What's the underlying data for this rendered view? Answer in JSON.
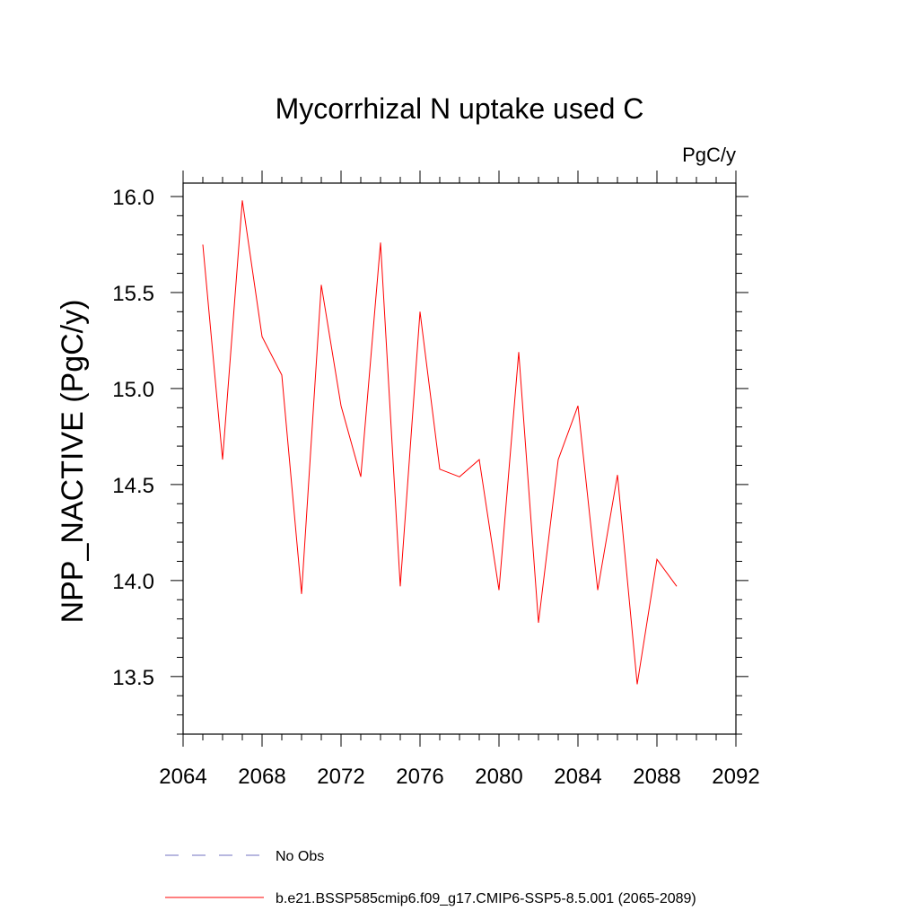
{
  "chart_data": {
    "type": "line",
    "title": "Mycorrhizal N uptake used C",
    "units": "PgC/y",
    "xlabel": "",
    "ylabel": "NPP_NACTIVE  (PgC/y)",
    "xlim": [
      2064,
      2092
    ],
    "ylim": [
      13.2,
      16.07
    ],
    "xticks": [
      "2064",
      "2068",
      "2072",
      "2076",
      "2080",
      "2084",
      "2088",
      "2092"
    ],
    "yticks": [
      "13.5",
      "14.0",
      "14.5",
      "15.0",
      "15.5",
      "16.0"
    ],
    "grid": false,
    "legend_position": "bottom",
    "series": [
      {
        "name": "b.e21.BSSP585cmip6.f09_g17.CMIP6-SSP5-8.5.001 (2065-2089)",
        "color": "#ff0000",
        "x": [
          2065,
          2066,
          2067,
          2068,
          2069,
          2070,
          2071,
          2072,
          2073,
          2074,
          2075,
          2076,
          2077,
          2078,
          2079,
          2080,
          2081,
          2082,
          2083,
          2084,
          2085,
          2086,
          2087,
          2088,
          2089
        ],
        "y": [
          15.75,
          14.63,
          15.98,
          15.27,
          15.07,
          13.93,
          15.54,
          14.91,
          14.54,
          15.76,
          13.97,
          15.4,
          14.58,
          14.54,
          14.63,
          13.95,
          15.19,
          13.78,
          14.63,
          14.91,
          13.95,
          14.55,
          13.46,
          14.11,
          13.97
        ]
      }
    ],
    "legend": [
      {
        "label": "No Obs",
        "color": "#7070c0",
        "style": "dashed"
      },
      {
        "label": "b.e21.BSSP585cmip6.f09_g17.CMIP6-SSP5-8.5.001 (2065-2089)",
        "color": "#ff0000",
        "style": "solid"
      }
    ]
  }
}
